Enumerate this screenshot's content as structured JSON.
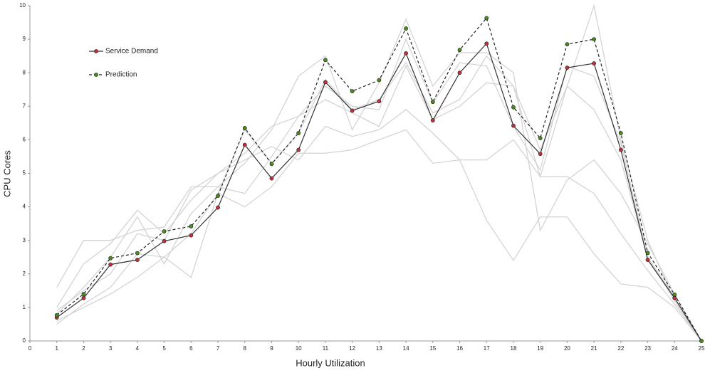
{
  "chart_data": {
    "type": "line",
    "x_label": "Hourly Utilization",
    "y_label": "CPU Cores",
    "x": [
      1,
      2,
      3,
      4,
      5,
      6,
      7,
      8,
      9,
      10,
      11,
      12,
      13,
      14,
      15,
      16,
      17,
      18,
      19,
      20,
      21,
      22,
      23,
      24,
      25
    ],
    "xlim": [
      0,
      25
    ],
    "xticks": [
      0,
      1,
      2,
      3,
      4,
      5,
      6,
      7,
      8,
      9,
      10,
      11,
      12,
      13,
      14,
      15,
      16,
      17,
      18,
      19,
      20,
      21,
      22,
      23,
      24,
      25
    ],
    "ylim": [
      0,
      10
    ],
    "yticks": [
      0,
      1,
      2,
      3,
      4,
      5,
      6,
      7,
      8,
      9,
      10
    ],
    "grid": false,
    "legend": "upper left",
    "series": [
      {
        "color": "#d4d4d4",
        "values": [
          1.6,
          3.0,
          3.0,
          3.3,
          3.4,
          4.6,
          4.6,
          5.3,
          6.3,
          7.9,
          8.5,
          6.3,
          7.7,
          9.6,
          7.6,
          8.6,
          8.6,
          8.0,
          3.3,
          4.8,
          5.4,
          4.4,
          2.9,
          1.4,
          0
        ]
      },
      {
        "color": "#d4d4d4",
        "values": [
          1.0,
          2.3,
          2.9,
          3.9,
          3.2,
          4.2,
          5.0,
          5.4,
          5.8,
          5.4,
          6.4,
          6.1,
          6.3,
          6.9,
          6.2,
          5.4,
          3.6,
          2.4,
          3.7,
          3.7,
          2.6,
          1.7,
          1.6,
          1.0,
          0
        ]
      },
      {
        "color": "#d4d4d4",
        "values": [
          0.5,
          1.1,
          1.6,
          2.6,
          2.5,
          1.9,
          4.4,
          4.0,
          4.6,
          5.6,
          5.6,
          5.7,
          6.0,
          6.3,
          5.3,
          5.4,
          5.4,
          6.0,
          4.9,
          4.9,
          4.4,
          3.2,
          2.1,
          1.1,
          0
        ]
      },
      {
        "color": "#d4d4d4",
        "values": [
          0.8,
          1.6,
          2.5,
          3.7,
          2.3,
          3.8,
          4.6,
          4.4,
          5.5,
          6.7,
          7.2,
          6.8,
          6.4,
          8.2,
          6.6,
          7.0,
          7.7,
          7.6,
          4.9,
          7.6,
          6.9,
          5.4,
          2.5,
          1.2,
          0
        ]
      },
      {
        "color": "#d4d4d4",
        "values": [
          0.6,
          1.0,
          1.4,
          1.9,
          2.5,
          3.2,
          4.4,
          6.3,
          5.3,
          6.2,
          7.8,
          6.9,
          7.2,
          8.3,
          6.8,
          7.2,
          8.5,
          7.6,
          5.7,
          7.6,
          10.0,
          6.0,
          3.0,
          1.2,
          0
        ]
      },
      {
        "color": "#d4d4d4",
        "values": [
          0.9,
          1.5,
          2.0,
          3.2,
          3.0,
          4.5,
          5.0,
          5.6,
          6.4,
          6.7,
          7.6,
          7.0,
          6.9,
          9.0,
          7.1,
          8.3,
          8.2,
          6.4,
          5.1,
          8.2,
          7.9,
          5.9,
          2.5,
          1.3,
          0
        ]
      },
      {
        "name": "Service Demand",
        "color": "#333333",
        "marker_color": "#c0303a",
        "dashed": false,
        "values": [
          0.7,
          1.28,
          2.28,
          2.42,
          2.98,
          3.15,
          3.98,
          5.85,
          4.85,
          5.7,
          7.72,
          6.87,
          7.15,
          8.58,
          6.58,
          8.0,
          8.87,
          6.42,
          5.58,
          8.15,
          8.28,
          5.7,
          2.42,
          1.28,
          0
        ]
      },
      {
        "name": "Prediction",
        "color": "#222222",
        "marker_color": "#4a8a1c",
        "dashed": true,
        "values": [
          0.77,
          1.4,
          2.47,
          2.62,
          3.27,
          3.42,
          4.33,
          6.35,
          5.28,
          6.2,
          8.38,
          7.45,
          7.78,
          9.32,
          7.13,
          8.68,
          9.63,
          6.97,
          6.05,
          8.85,
          9.0,
          6.2,
          2.63,
          1.38,
          0
        ]
      }
    ]
  }
}
